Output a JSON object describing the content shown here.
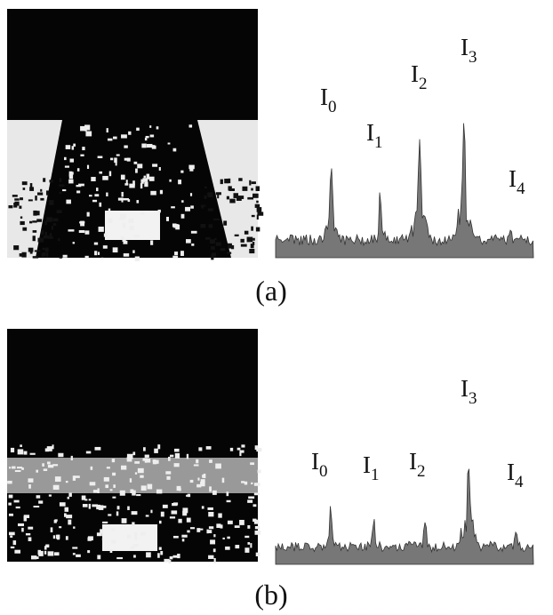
{
  "panels": [
    {
      "caption": "(a)",
      "peaks": [
        {
          "letter": "I",
          "index": "0"
        },
        {
          "letter": "I",
          "index": "1"
        },
        {
          "letter": "I",
          "index": "2"
        },
        {
          "letter": "I",
          "index": "3"
        },
        {
          "letter": "I",
          "index": "4"
        }
      ]
    },
    {
      "caption": "(b)",
      "peaks": [
        {
          "letter": "I",
          "index": "0"
        },
        {
          "letter": "I",
          "index": "1"
        },
        {
          "letter": "I",
          "index": "2"
        },
        {
          "letter": "I",
          "index": "3"
        },
        {
          "letter": "I",
          "index": "4"
        }
      ]
    }
  ]
}
